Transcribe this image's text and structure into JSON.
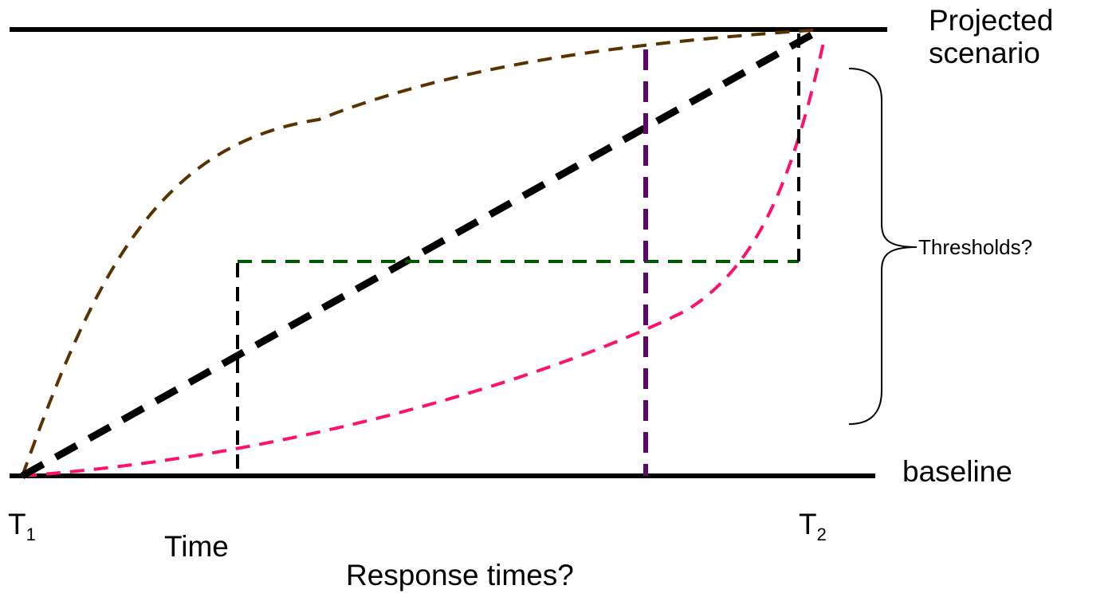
{
  "labels": {
    "projected": "Projected\nscenario",
    "projected_line1": "Projected",
    "projected_line2": "scenario",
    "baseline": "baseline",
    "thresholds": "Thresholds?",
    "t1_main": "T",
    "t1_sub": "1",
    "t2_main": "T",
    "t2_sub": "2",
    "time": "Time",
    "response": "Response times?"
  },
  "colors": {
    "frame": "#000000",
    "brown_curve": "#5a3200",
    "pink_curve": "#ff0f6e",
    "linear_path": "#000000",
    "threshold_line": "#005a00",
    "purple_line": "#5a0a64",
    "black_dashed": "#000000"
  },
  "icons": {
    "brace": "right-curly-brace-icon"
  }
}
